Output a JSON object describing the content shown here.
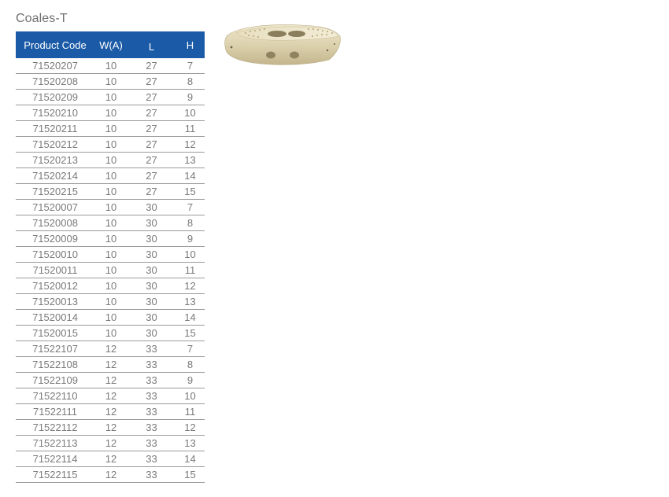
{
  "title": "Coales-T",
  "table": {
    "headers": [
      "Product Code",
      "W(A)",
      "L",
      "H"
    ],
    "rows": [
      [
        "71520207",
        "10",
        "27",
        "7"
      ],
      [
        "71520208",
        "10",
        "27",
        "8"
      ],
      [
        "71520209",
        "10",
        "27",
        "9"
      ],
      [
        "71520210",
        "10",
        "27",
        "10"
      ],
      [
        "71520211",
        "10",
        "27",
        "11"
      ],
      [
        "71520212",
        "10",
        "27",
        "12"
      ],
      [
        "71520213",
        "10",
        "27",
        "13"
      ],
      [
        "71520214",
        "10",
        "27",
        "14"
      ],
      [
        "71520215",
        "10",
        "27",
        "15"
      ],
      [
        "71520007",
        "10",
        "30",
        "7"
      ],
      [
        "71520008",
        "10",
        "30",
        "8"
      ],
      [
        "71520009",
        "10",
        "30",
        "9"
      ],
      [
        "71520010",
        "10",
        "30",
        "10"
      ],
      [
        "71520011",
        "10",
        "30",
        "11"
      ],
      [
        "71520012",
        "10",
        "30",
        "12"
      ],
      [
        "71520013",
        "10",
        "30",
        "13"
      ],
      [
        "71520014",
        "10",
        "30",
        "14"
      ],
      [
        "71520015",
        "10",
        "30",
        "15"
      ],
      [
        "71522107",
        "12",
        "33",
        "7"
      ],
      [
        "71522108",
        "12",
        "33",
        "8"
      ],
      [
        "71522109",
        "12",
        "33",
        "9"
      ],
      [
        "71522110",
        "12",
        "33",
        "10"
      ],
      [
        "71522111",
        "12",
        "33",
        "11"
      ],
      [
        "71522112",
        "12",
        "33",
        "12"
      ],
      [
        "71522113",
        "12",
        "33",
        "13"
      ],
      [
        "71522114",
        "12",
        "33",
        "14"
      ],
      [
        "71522115",
        "12",
        "33",
        "15"
      ]
    ]
  },
  "colors": {
    "header_bg": "#1a5aa6",
    "header_text": "#ffffff",
    "cell_text": "#7a7a7a",
    "implant_body": "#ddd2ae"
  },
  "image": {
    "icon": "spinal-cage-implant"
  }
}
